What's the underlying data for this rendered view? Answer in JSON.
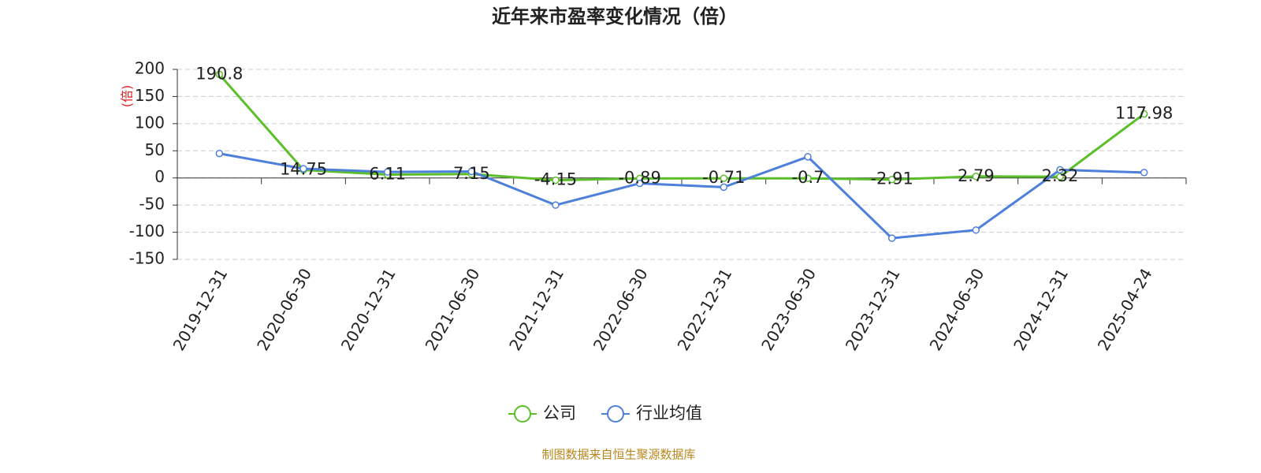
{
  "chart_data": {
    "type": "line",
    "title": "近年来市盈率变化情况（倍）",
    "y_label": "(倍)",
    "categories": [
      "2019-12-31",
      "2020-06-30",
      "2020-12-31",
      "2021-06-30",
      "2021-12-31",
      "2022-06-30",
      "2022-12-31",
      "2023-06-30",
      "2023-12-31",
      "2024-06-30",
      "2024-12-31",
      "2025-04-24"
    ],
    "series": [
      {
        "name": "公司",
        "color": "#5bbf2a",
        "values": [
          190.8,
          14.75,
          6.11,
          7.15,
          -4.15,
          -0.89,
          -0.71,
          -0.7,
          -2.91,
          2.79,
          2.32,
          117.98
        ]
      },
      {
        "name": "行业均值",
        "color": "#4e80db",
        "values": [
          45,
          17,
          11,
          12,
          -50,
          -10,
          -17,
          39,
          -111,
          -96,
          15,
          10
        ]
      }
    ],
    "ylim": [
      -150,
      200
    ],
    "yticks": [
      200,
      150,
      100,
      50,
      0,
      -50,
      -100,
      -150
    ],
    "grid": true,
    "source": "制图数据来自恒生聚源数据库"
  }
}
